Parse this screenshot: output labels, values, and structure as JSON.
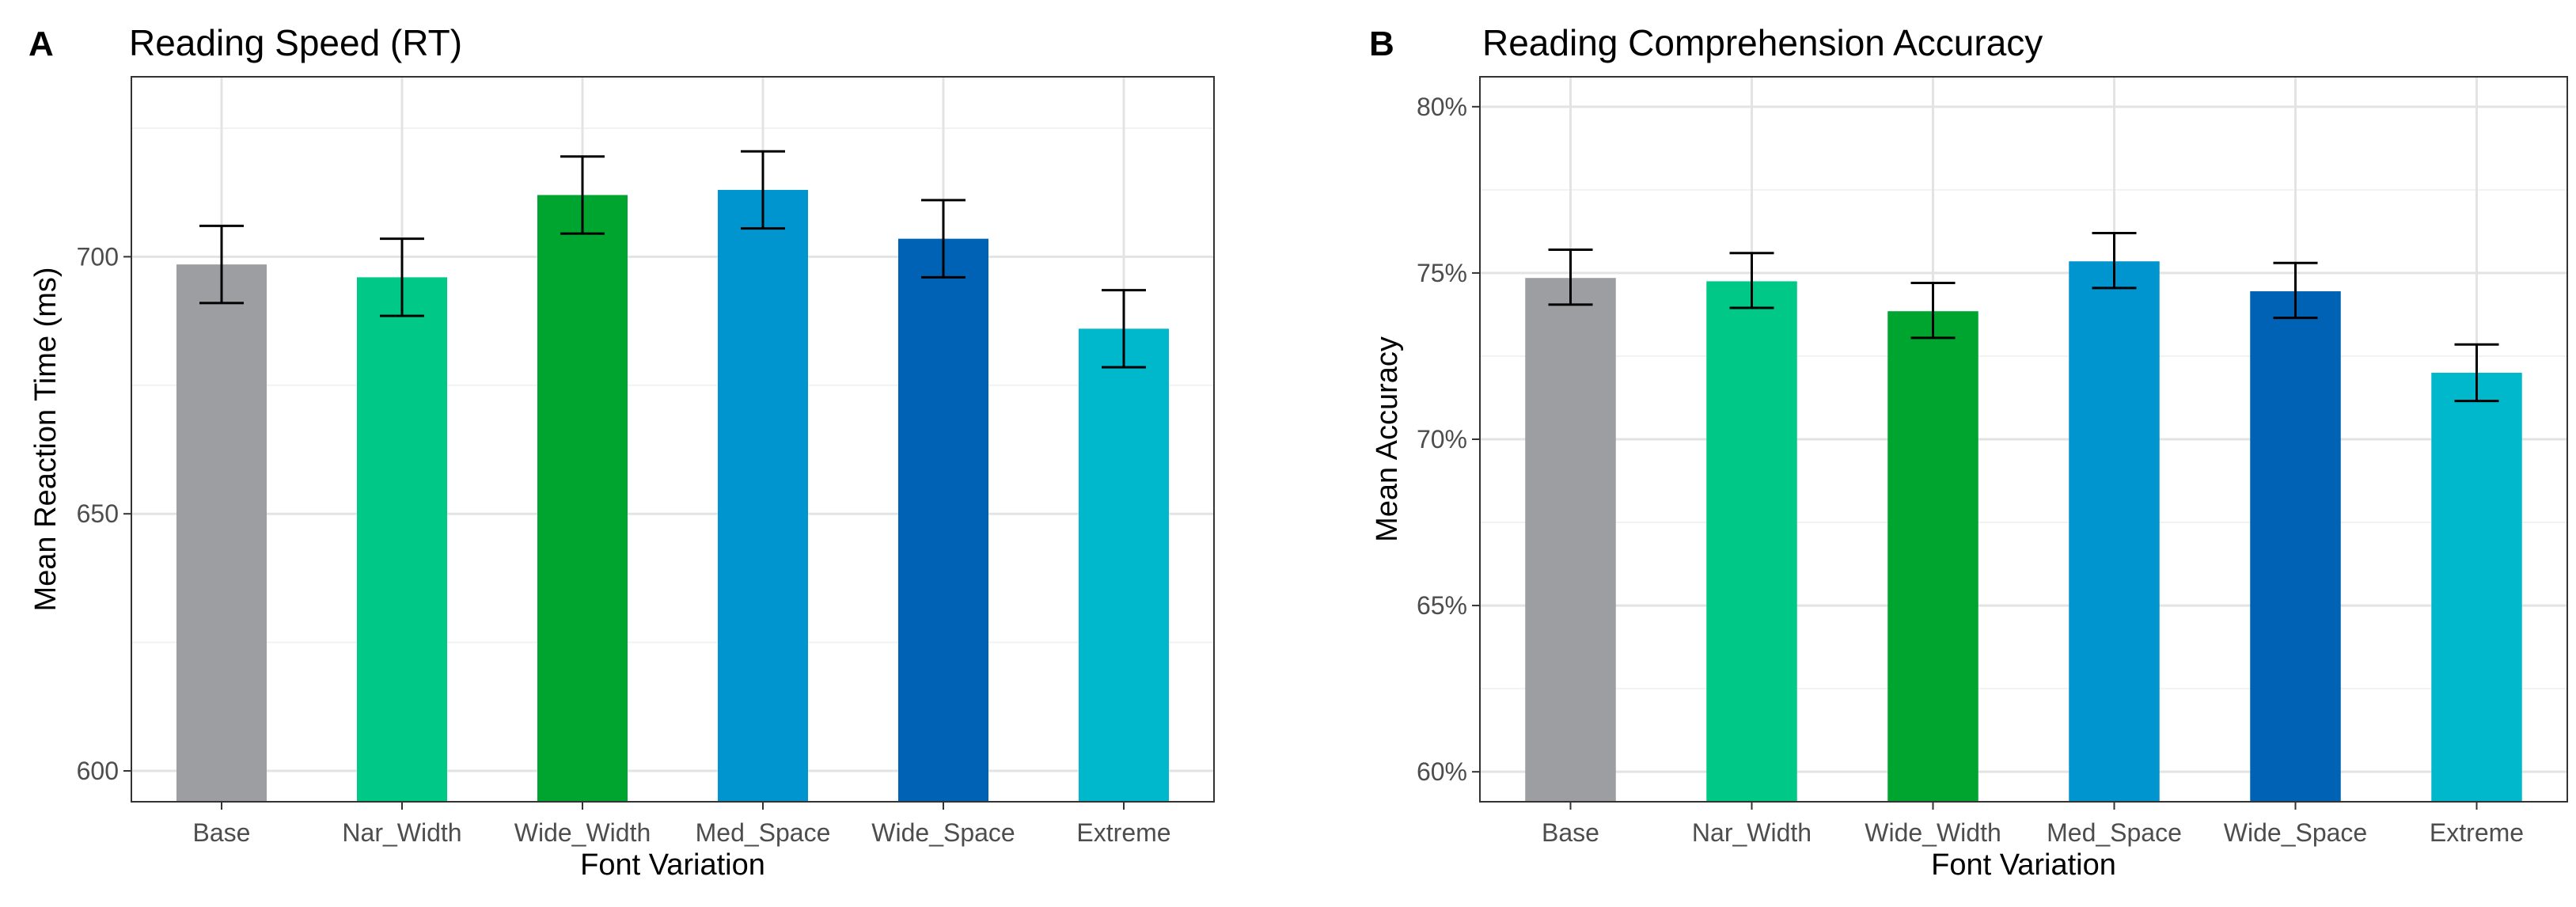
{
  "chart_data": [
    {
      "panel_label": "A",
      "type": "bar",
      "title": "Reading Speed (RT)",
      "xlabel": "Font Variation",
      "ylabel": "Mean Reaction Time (ms)",
      "ylim": [
        594,
        735
      ],
      "yticks": [
        600,
        650,
        700
      ],
      "ytick_labels": [
        "600",
        "650",
        "700"
      ],
      "categories": [
        "Base",
        "Nar_Width",
        "Wide_Width",
        "Med_Space",
        "Wide_Space",
        "Extreme"
      ],
      "values": [
        698.5,
        696,
        712,
        713,
        703.5,
        686
      ],
      "error_low": [
        691,
        688.5,
        704.5,
        705.5,
        696,
        678.5
      ],
      "error_high": [
        706,
        703.5,
        719.5,
        720.5,
        711,
        693.5
      ],
      "colors": [
        "#9c9ea1",
        "#00c987",
        "#00a52f",
        "#0095cf",
        "#0062b4",
        "#00b8cc"
      ],
      "grid": true
    },
    {
      "panel_label": "B",
      "type": "bar",
      "title": "Reading Comprehension Accuracy",
      "xlabel": "Font Variation",
      "ylabel": "Mean Accuracy",
      "ylim": [
        59.1,
        80.9
      ],
      "yticks": [
        60,
        65,
        70,
        75,
        80
      ],
      "ytick_labels": [
        "60%",
        "65%",
        "70%",
        "75%",
        "80%"
      ],
      "categories": [
        "Base",
        "Nar_Width",
        "Wide_Width",
        "Med_Space",
        "Wide_Space",
        "Extreme"
      ],
      "values": [
        74.85,
        74.75,
        73.85,
        75.35,
        74.45,
        72.0
      ],
      "error_low": [
        74.05,
        73.95,
        73.05,
        74.55,
        73.65,
        71.15
      ],
      "error_high": [
        75.7,
        75.6,
        74.7,
        76.2,
        75.3,
        72.85
      ],
      "colors": [
        "#9c9ea1",
        "#00c987",
        "#00a52f",
        "#0095cf",
        "#0062b4",
        "#00b8cc"
      ],
      "grid": true
    }
  ]
}
